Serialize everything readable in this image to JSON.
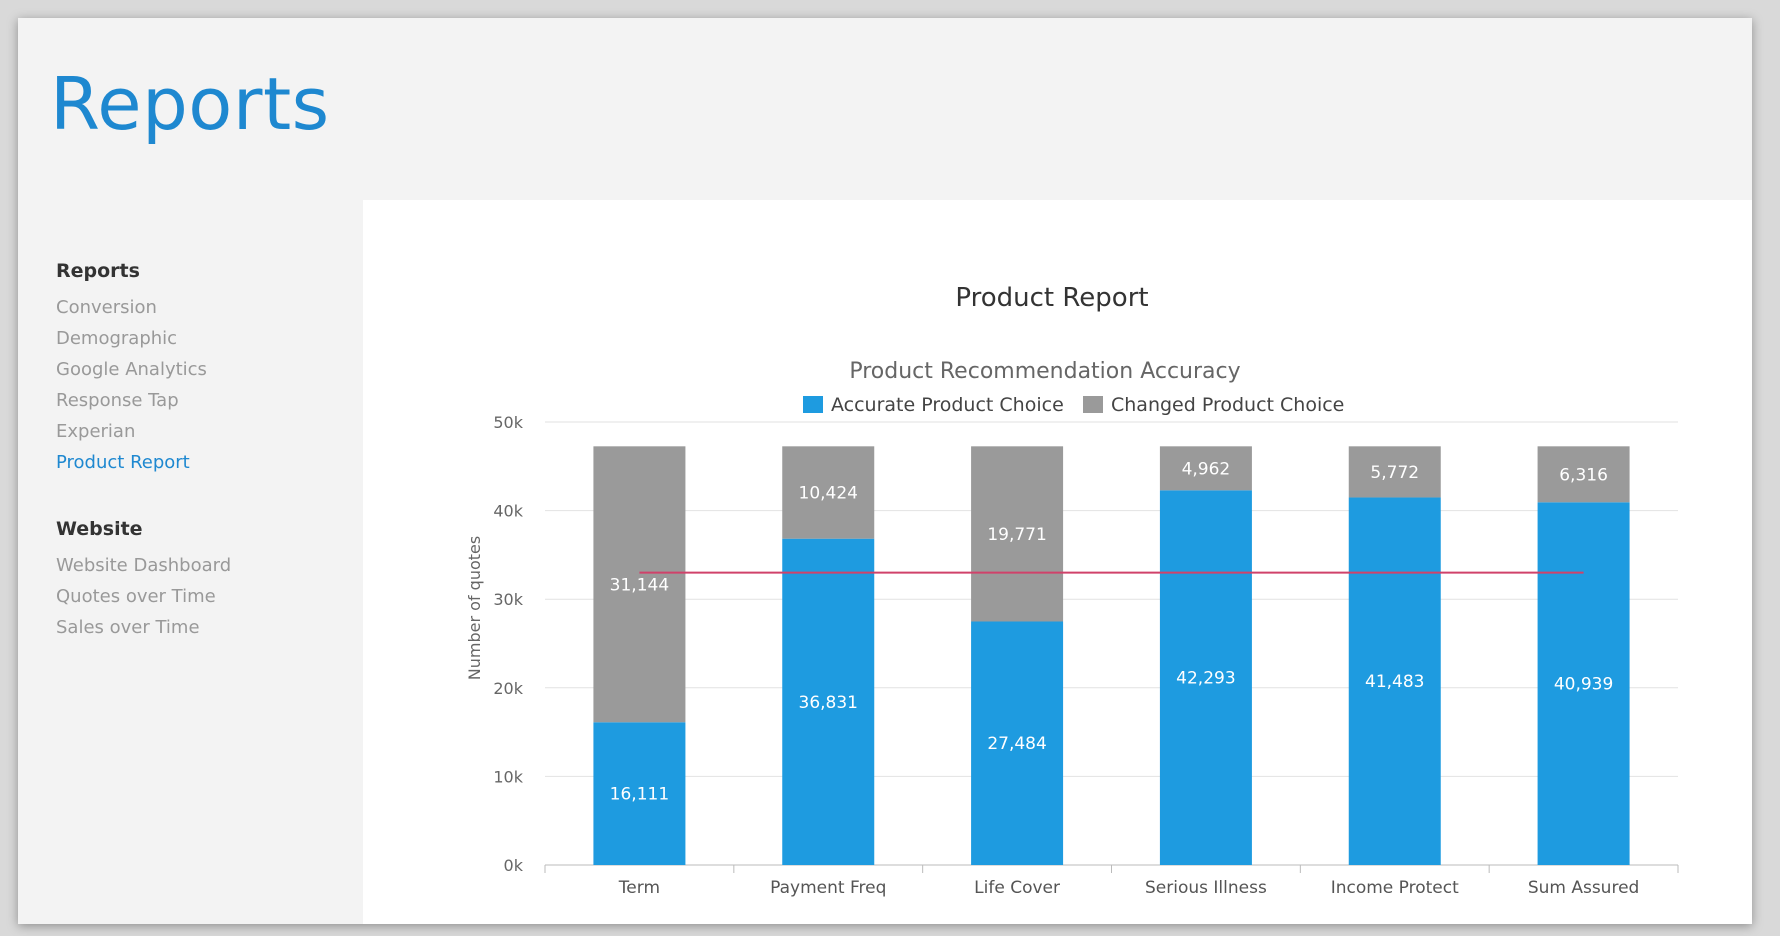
{
  "header": {
    "title": "Reports"
  },
  "sidebar": {
    "groups": [
      {
        "heading": "Reports",
        "items": [
          {
            "label": "Conversion",
            "active": false
          },
          {
            "label": "Demographic",
            "active": false
          },
          {
            "label": "Google Analytics",
            "active": false
          },
          {
            "label": "Response Tap",
            "active": false
          },
          {
            "label": "Experian",
            "active": false
          },
          {
            "label": "Product Report",
            "active": true
          }
        ]
      },
      {
        "heading": "Website",
        "items": [
          {
            "label": "Website Dashboard",
            "active": false
          },
          {
            "label": "Quotes over Time",
            "active": false
          },
          {
            "label": "Sales over Time",
            "active": false
          }
        ]
      }
    ]
  },
  "panel": {
    "title": "Product Report"
  },
  "colors": {
    "accent": "#1e88d0",
    "accurate": "#1e9be0",
    "changed": "#9a9a9a",
    "reference_line": "#d0426a"
  },
  "chart_data": {
    "type": "bar",
    "stacked": true,
    "title": "Product Recommendation Accuracy",
    "ylabel": "Number of quotes",
    "xlabel": "",
    "ylim": [
      0,
      50000
    ],
    "yticks": [
      "0k",
      "10k",
      "20k",
      "30k",
      "40k",
      "50k"
    ],
    "grid": true,
    "legend_position": "top",
    "categories": [
      "Term",
      "Payment Freq",
      "Life Cover",
      "Serious Illness",
      "Income Protect",
      "Sum Assured"
    ],
    "series": [
      {
        "name": "Accurate Product Choice",
        "color": "#1e9be0",
        "values": [
          16111,
          36831,
          27484,
          42293,
          41483,
          40939
        ],
        "labels": [
          "16,111",
          "36,831",
          "27,484",
          "42,293",
          "41,483",
          "40,939"
        ]
      },
      {
        "name": "Changed Product Choice",
        "color": "#9a9a9a",
        "values": [
          31144,
          10424,
          19771,
          4962,
          5772,
          6316
        ],
        "labels": [
          "31,144",
          "10,424",
          "19,771",
          "4,962",
          "5,772",
          "6,316"
        ]
      }
    ],
    "reference_line": {
      "value": 33000,
      "color": "#d0426a"
    }
  }
}
